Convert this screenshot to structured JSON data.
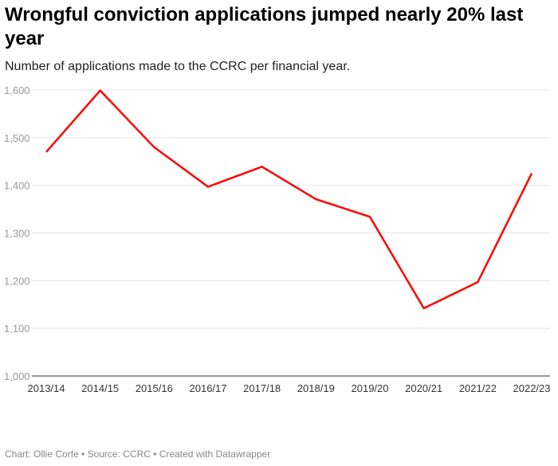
{
  "title": "Wrongful conviction applications jumped nearly 20% last year",
  "subtitle": "Number of applications made to the CCRC per financial year.",
  "footer": "Chart: Ollie Corfe • Source: CCRC • Created with Datawrapper",
  "chart_data": {
    "type": "line",
    "title": "Wrongful conviction applications jumped nearly 20% last year",
    "xlabel": "",
    "ylabel": "",
    "categories": [
      "2013/14",
      "2014/15",
      "2015/16",
      "2016/17",
      "2017/18",
      "2018/19",
      "2019/20",
      "2020/21",
      "2021/22",
      "2022/23"
    ],
    "series": [
      {
        "name": "Applications",
        "color": "#ff0000",
        "values": [
          1470,
          1599,
          1480,
          1397,
          1439,
          1371,
          1334,
          1142,
          1197,
          1425
        ]
      }
    ],
    "ylim": [
      1000,
      1600
    ],
    "yticks": [
      1000,
      1100,
      1200,
      1300,
      1400,
      1500,
      1600
    ],
    "ytick_labels": [
      "1,000",
      "1,100",
      "1,200",
      "1,300",
      "1,400",
      "1,500",
      "1,600"
    ],
    "grid": true
  }
}
